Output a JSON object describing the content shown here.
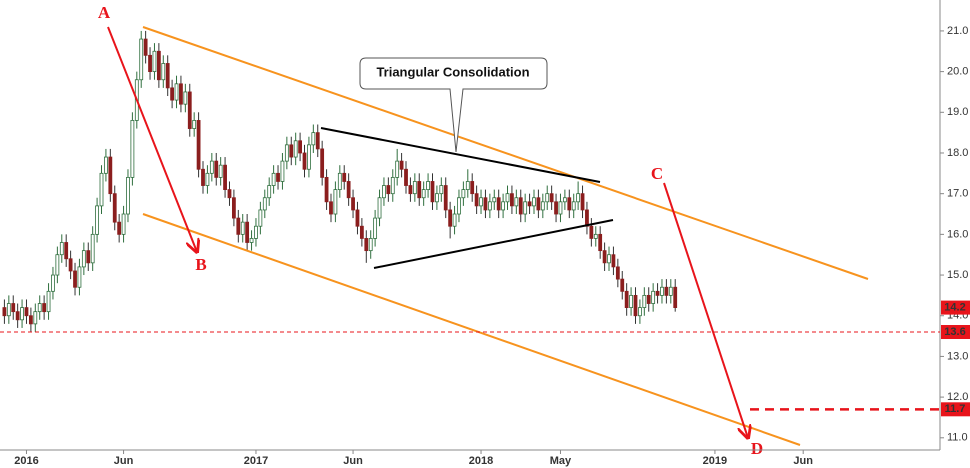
{
  "chart_data": {
    "type": "candlestick",
    "xlim": [
      -1,
      212
    ],
    "xticks": [
      {
        "value": 5,
        "label": "2016"
      },
      {
        "value": 27,
        "label": "Jun"
      },
      {
        "value": 57,
        "label": "2017"
      },
      {
        "value": 79,
        "label": "Jun"
      },
      {
        "value": 108,
        "label": "2018"
      },
      {
        "value": 126,
        "label": "May"
      },
      {
        "value": 161,
        "label": "2019"
      },
      {
        "value": 181,
        "label": "Jun"
      }
    ],
    "ylim": [
      10.7,
      21.76
    ],
    "yticks": [
      {
        "value": 11,
        "label": "11.0"
      },
      {
        "value": 12,
        "label": "12.0"
      },
      {
        "value": 13,
        "label": "13.0"
      },
      {
        "value": 14,
        "label": "14.0"
      },
      {
        "value": 15,
        "label": "15.0"
      },
      {
        "value": 16,
        "label": "16.0"
      },
      {
        "value": 17,
        "label": "17.0"
      },
      {
        "value": 18,
        "label": "18.0"
      },
      {
        "value": 19,
        "label": "19.0"
      },
      {
        "value": 20,
        "label": "20.0"
      },
      {
        "value": 21,
        "label": "21.0"
      }
    ],
    "up_color": "#ffffff",
    "up_edge": "#2f6f3e",
    "down_color": "#8b1e1e",
    "wick_color": "#333333",
    "marker_color": "#e8141b",
    "price_markers": [
      14.2,
      13.6,
      11.7
    ],
    "open": [
      14.2,
      14.0,
      14.3,
      14.1,
      13.9,
      14.2,
      14.0,
      13.8,
      14.1,
      14.3,
      14.1,
      14.6,
      15.0,
      15.5,
      15.8,
      15.4,
      15.1,
      14.7,
      15.2,
      15.6,
      15.3,
      16.0,
      16.7,
      17.5,
      17.9,
      17.0,
      16.3,
      16.0,
      16.5,
      17.4,
      18.8,
      19.8,
      20.8,
      20.4,
      20.0,
      20.5,
      19.8,
      20.2,
      19.6,
      19.3,
      19.7,
      19.2,
      19.5,
      18.6,
      18.8,
      17.6,
      17.2,
      17.5,
      17.8,
      17.4,
      17.7,
      17.1,
      16.9,
      16.4,
      16.0,
      16.3,
      15.8,
      15.9,
      16.2,
      16.6,
      16.9,
      17.2,
      17.5,
      17.3,
      17.8,
      18.2,
      17.9,
      18.3,
      18.0,
      17.6,
      18.2,
      18.5,
      18.1,
      17.4,
      16.8,
      16.5,
      17.1,
      17.5,
      17.3,
      16.9,
      16.6,
      16.2,
      15.9,
      15.6,
      15.9,
      16.4,
      16.9,
      17.2,
      17.0,
      17.4,
      17.8,
      17.6,
      17.2,
      17.0,
      17.3,
      16.9,
      17.1,
      17.3,
      16.8,
      17.0,
      17.2,
      16.6,
      16.2,
      16.5,
      16.9,
      17.1,
      17.3,
      17.0,
      16.7,
      16.9,
      16.6,
      16.8,
      16.9,
      16.6,
      16.8,
      17.0,
      16.7,
      16.9,
      16.5,
      16.8,
      16.7,
      16.9,
      16.6,
      16.8,
      17.0,
      16.8,
      16.5,
      16.8,
      16.9,
      16.6,
      16.8,
      17.0,
      16.6,
      16.2,
      15.9,
      16.0,
      15.6,
      15.3,
      15.5,
      15.2,
      14.9,
      14.6,
      14.2,
      14.5,
      14.0,
      14.2,
      14.5,
      14.3,
      14.6,
      14.5,
      14.7,
      14.5,
      14.7
    ],
    "high": [
      14.4,
      14.5,
      14.5,
      14.3,
      14.4,
      14.4,
      14.2,
      14.3,
      14.5,
      14.5,
      14.8,
      15.2,
      15.7,
      16.0,
      16.0,
      15.6,
      15.3,
      15.4,
      15.8,
      15.8,
      16.2,
      16.9,
      17.7,
      18.1,
      18.1,
      17.2,
      16.5,
      16.7,
      17.6,
      19.0,
      20.0,
      21.0,
      21.0,
      20.6,
      20.7,
      20.7,
      20.4,
      20.4,
      19.8,
      19.9,
      19.9,
      19.7,
      19.7,
      19.0,
      19.0,
      17.8,
      17.7,
      18.0,
      18.0,
      17.9,
      17.9,
      17.3,
      17.1,
      16.6,
      16.5,
      16.5,
      16.1,
      16.4,
      16.8,
      17.1,
      17.4,
      17.7,
      17.7,
      18.0,
      18.4,
      18.4,
      18.5,
      18.5,
      18.2,
      18.4,
      18.7,
      18.7,
      18.3,
      17.6,
      17.0,
      17.3,
      17.7,
      17.7,
      17.5,
      17.1,
      16.8,
      16.4,
      16.1,
      16.1,
      16.6,
      17.1,
      17.4,
      17.4,
      17.6,
      18.1,
      18.0,
      17.8,
      17.4,
      17.5,
      17.5,
      17.3,
      17.5,
      17.5,
      17.2,
      17.4,
      17.4,
      16.8,
      16.7,
      17.1,
      17.3,
      17.6,
      17.5,
      17.2,
      17.1,
      17.1,
      17.0,
      17.1,
      17.1,
      17.0,
      17.2,
      17.2,
      17.1,
      17.1,
      17.0,
      17.0,
      17.1,
      17.1,
      17.0,
      17.2,
      17.2,
      17.0,
      17.0,
      17.1,
      17.1,
      17.0,
      17.3,
      17.2,
      16.8,
      16.4,
      16.2,
      16.2,
      15.8,
      15.7,
      15.7,
      15.4,
      15.1,
      14.8,
      14.7,
      14.7,
      14.4,
      14.7,
      14.7,
      14.8,
      14.8,
      14.9,
      14.9,
      14.9,
      14.9
    ],
    "low": [
      13.8,
      13.8,
      13.9,
      13.7,
      13.7,
      13.8,
      13.6,
      13.6,
      13.9,
      13.9,
      13.9,
      14.4,
      14.8,
      15.3,
      15.2,
      14.9,
      14.5,
      14.5,
      15.0,
      15.1,
      15.1,
      15.8,
      16.5,
      17.3,
      16.8,
      16.1,
      15.8,
      15.8,
      16.3,
      17.2,
      18.6,
      19.6,
      20.2,
      19.8,
      19.8,
      19.6,
      19.6,
      19.4,
      19.1,
      19.1,
      19.0,
      19.0,
      18.4,
      18.4,
      17.4,
      17.0,
      17.0,
      17.3,
      17.2,
      17.2,
      16.9,
      16.7,
      16.2,
      15.8,
      15.8,
      15.6,
      15.6,
      15.7,
      16.0,
      16.4,
      16.7,
      17.0,
      17.1,
      17.1,
      17.6,
      17.7,
      17.7,
      17.8,
      17.4,
      17.4,
      18.0,
      17.9,
      17.2,
      16.6,
      16.3,
      16.3,
      16.9,
      17.1,
      16.7,
      16.4,
      16.0,
      15.7,
      15.3,
      15.4,
      15.7,
      16.2,
      16.7,
      16.8,
      16.8,
      17.2,
      17.4,
      17.0,
      16.8,
      16.8,
      16.7,
      16.7,
      16.9,
      16.6,
      16.6,
      16.8,
      16.4,
      15.9,
      16.0,
      16.3,
      16.7,
      16.9,
      16.8,
      16.5,
      16.5,
      16.4,
      16.4,
      16.6,
      16.4,
      16.4,
      16.6,
      16.5,
      16.5,
      16.3,
      16.3,
      16.5,
      16.5,
      16.4,
      16.4,
      16.6,
      16.6,
      16.3,
      16.3,
      16.6,
      16.4,
      16.4,
      16.6,
      16.4,
      16.0,
      15.7,
      15.7,
      15.4,
      15.1,
      15.1,
      15.0,
      14.7,
      14.4,
      14.0,
      14.0,
      13.8,
      13.8,
      14.0,
      14.1,
      14.1,
      14.3,
      14.3,
      14.3,
      14.3,
      14.1
    ],
    "close": [
      14.0,
      14.3,
      14.1,
      13.9,
      14.2,
      14.0,
      13.8,
      14.1,
      14.3,
      14.1,
      14.6,
      15.0,
      15.5,
      15.8,
      15.4,
      15.1,
      14.7,
      15.2,
      15.6,
      15.3,
      16.0,
      16.7,
      17.5,
      17.9,
      17.0,
      16.3,
      16.0,
      16.5,
      17.4,
      18.8,
      19.8,
      20.8,
      20.4,
      20.0,
      20.5,
      19.8,
      20.2,
      19.6,
      19.3,
      19.7,
      19.2,
      19.5,
      18.6,
      18.8,
      17.6,
      17.2,
      17.5,
      17.8,
      17.4,
      17.7,
      17.1,
      16.9,
      16.4,
      16.0,
      16.3,
      15.8,
      15.9,
      16.2,
      16.6,
      16.9,
      17.2,
      17.5,
      17.3,
      17.8,
      18.2,
      17.9,
      18.3,
      18.0,
      17.6,
      18.2,
      18.5,
      18.1,
      17.4,
      16.8,
      16.5,
      17.1,
      17.5,
      17.3,
      16.9,
      16.6,
      16.2,
      15.9,
      15.6,
      15.9,
      16.4,
      16.9,
      17.2,
      17.0,
      17.4,
      17.8,
      17.6,
      17.2,
      17.0,
      17.3,
      16.9,
      17.1,
      17.3,
      16.8,
      17.0,
      17.2,
      16.6,
      16.2,
      16.5,
      16.9,
      17.1,
      17.3,
      17.0,
      16.7,
      16.9,
      16.6,
      16.8,
      16.9,
      16.6,
      16.8,
      17.0,
      16.7,
      16.9,
      16.5,
      16.8,
      16.7,
      16.9,
      16.6,
      16.8,
      17.0,
      16.8,
      16.5,
      16.8,
      16.9,
      16.6,
      16.8,
      17.0,
      16.6,
      16.2,
      15.9,
      16.0,
      15.6,
      15.3,
      15.5,
      15.2,
      14.9,
      14.6,
      14.2,
      14.5,
      14.0,
      14.2,
      14.5,
      14.3,
      14.6,
      14.5,
      14.7,
      14.5,
      14.7,
      14.2
    ],
    "annotations": {
      "a": "A",
      "b": "B",
      "c": "C",
      "d": "D",
      "callout": "Triangular Consolidation"
    }
  }
}
